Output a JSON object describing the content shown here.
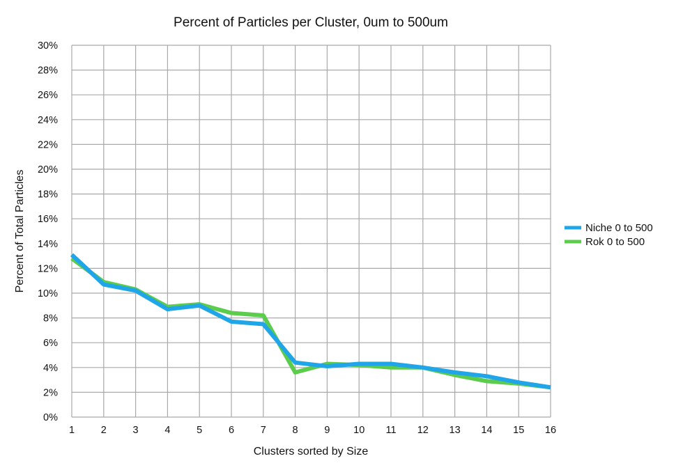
{
  "chart_data": {
    "type": "line",
    "title": "Percent of Particles per Cluster, 0um to 500um",
    "xlabel": "Clusters sorted by Size",
    "ylabel": "Percent of Total Particles",
    "x": [
      1,
      2,
      3,
      4,
      5,
      6,
      7,
      8,
      9,
      10,
      11,
      12,
      13,
      14,
      15,
      16
    ],
    "x_ticks": [
      "1",
      "2",
      "3",
      "4",
      "5",
      "6",
      "7",
      "8",
      "9",
      "10",
      "11",
      "12",
      "13",
      "14",
      "15",
      "16"
    ],
    "ylim": [
      0,
      30
    ],
    "y_ticks": [
      "0%",
      "2%",
      "4%",
      "6%",
      "8%",
      "10%",
      "12%",
      "14%",
      "16%",
      "18%",
      "20%",
      "22%",
      "24%",
      "26%",
      "28%",
      "30%"
    ],
    "y_tick_values": [
      0,
      2,
      4,
      6,
      8,
      10,
      12,
      14,
      16,
      18,
      20,
      22,
      24,
      26,
      28,
      30
    ],
    "grid": true,
    "legend_position": "right",
    "series": [
      {
        "name": "Niche 0  to  500",
        "color": "#1fa5e8",
        "values": [
          13.1,
          10.7,
          10.2,
          8.7,
          9.0,
          7.7,
          7.5,
          4.4,
          4.1,
          4.3,
          4.3,
          4.0,
          3.6,
          3.3,
          2.8,
          2.4
        ]
      },
      {
        "name": "Rok 0  to  500",
        "color": "#5ccc4c",
        "values": [
          12.8,
          10.9,
          10.3,
          8.9,
          9.1,
          8.4,
          8.2,
          3.6,
          4.3,
          4.2,
          4.0,
          4.0,
          3.4,
          2.9,
          2.7,
          2.4
        ]
      }
    ]
  }
}
